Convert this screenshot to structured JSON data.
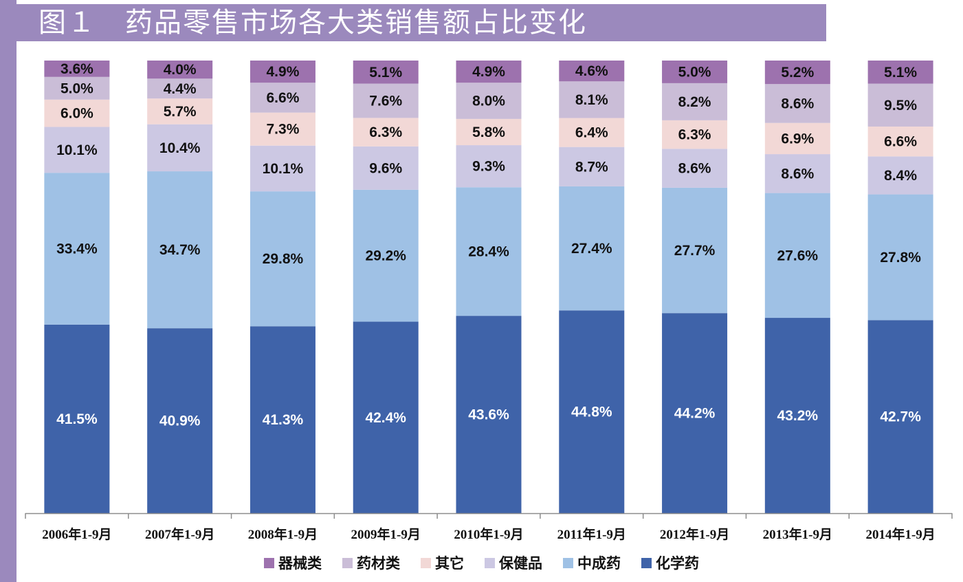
{
  "title": "图１　药品零售市场各大类销售额占比变化",
  "chart_data": {
    "type": "bar",
    "stacked": true,
    "normalized_percent": true,
    "categories": [
      "2006年1-9月",
      "2007年1-9月",
      "2008年1-9月",
      "2009年1-9月",
      "2010年1-9月",
      "2011年1-9月",
      "2012年1-9月",
      "2013年1-9月",
      "2014年1-9月"
    ],
    "series": [
      {
        "name": "化学药",
        "color": "#3f63a9",
        "values": [
          41.5,
          40.9,
          41.3,
          42.4,
          43.6,
          44.8,
          44.2,
          43.2,
          42.7
        ],
        "labels": [
          "41.5%",
          "40.9%",
          "41.3%",
          "42.4%",
          "43.6%",
          "44.8%",
          "44.2%",
          "43.2%",
          "42.7%"
        ]
      },
      {
        "name": "中成药",
        "color": "#9fc1e5",
        "values": [
          33.4,
          34.7,
          29.8,
          29.2,
          28.4,
          27.4,
          27.7,
          27.6,
          27.8
        ],
        "labels": [
          "33.4%",
          "34.7%",
          "29.8%",
          "29.2%",
          "28.4%",
          "27.4%",
          "27.7%",
          "27.6%",
          "27.8%"
        ]
      },
      {
        "name": "保健品",
        "color": "#ccc8e3",
        "values": [
          10.1,
          10.4,
          10.1,
          9.6,
          9.3,
          8.7,
          8.6,
          8.6,
          8.4
        ],
        "labels": [
          "10.1%",
          "10.4%",
          "10.1%",
          "9.6%",
          "9.3%",
          "8.7%",
          "8.6%",
          "8.6%",
          "8.4%"
        ]
      },
      {
        "name": "其它",
        "color": "#f2d8d6",
        "values": [
          6.0,
          5.7,
          7.3,
          6.3,
          5.8,
          6.4,
          6.3,
          6.9,
          6.6
        ],
        "labels": [
          "6.0%",
          "5.7%",
          "7.3%",
          "6.3%",
          "5.8%",
          "6.4%",
          "6.3%",
          "6.9%",
          "6.6%"
        ]
      },
      {
        "name": "药材类",
        "color": "#cabdd7",
        "values": [
          5.0,
          4.4,
          6.6,
          7.6,
          8.0,
          8.1,
          8.2,
          8.6,
          9.5
        ],
        "labels": [
          "5.0%",
          "4.4%",
          "6.6%",
          "7.6%",
          "8.0%",
          "8.1%",
          "8.2%",
          "8.6%",
          "9.5%"
        ]
      },
      {
        "name": "器械类",
        "color": "#9d72ae",
        "values": [
          3.6,
          4.0,
          4.9,
          5.1,
          4.9,
          4.6,
          5.0,
          5.2,
          5.1
        ],
        "labels": [
          "3.6%",
          "4.0%",
          "4.9%",
          "5.1%",
          "4.9%",
          "4.6%",
          "5.0%",
          "5.2%",
          "5.1%"
        ]
      }
    ],
    "legend_order": [
      "器械类",
      "药材类",
      "其它",
      "保健品",
      "中成药",
      "化学药"
    ],
    "legend_position": "bottom",
    "label_colors": {
      "dark_segment": "#ffffff",
      "light_segment": "#111111"
    },
    "ylim": [
      0,
      100
    ],
    "grid": false
  }
}
